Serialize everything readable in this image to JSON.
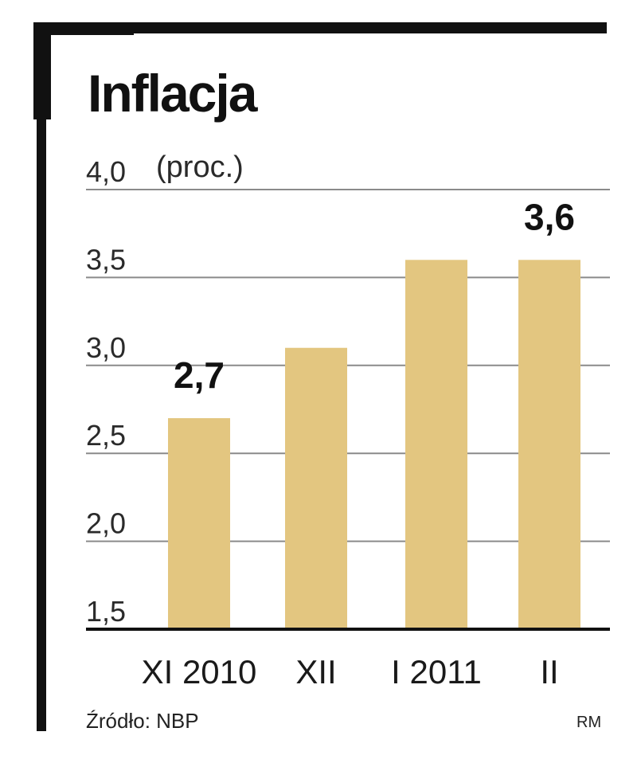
{
  "chart_data": {
    "type": "bar",
    "title": "Inflacja",
    "unit": "(proc.)",
    "categories": [
      "XI 2010",
      "XII",
      "I 2011",
      "II"
    ],
    "values": [
      2.7,
      3.1,
      3.6,
      3.6
    ],
    "data_labels": [
      "2,7",
      "",
      "",
      "3,6"
    ],
    "ylim": [
      1.5,
      4.0
    ],
    "y_ticks": [
      1.5,
      2.0,
      2.5,
      3.0,
      3.5,
      4.0
    ],
    "y_tick_labels": [
      "1,5",
      "2,0",
      "2,5",
      "3,0",
      "3,5",
      "4,0"
    ],
    "grid": true,
    "bar_color": "#e3c680",
    "source": "Źródło: NBP",
    "author": "RM"
  }
}
